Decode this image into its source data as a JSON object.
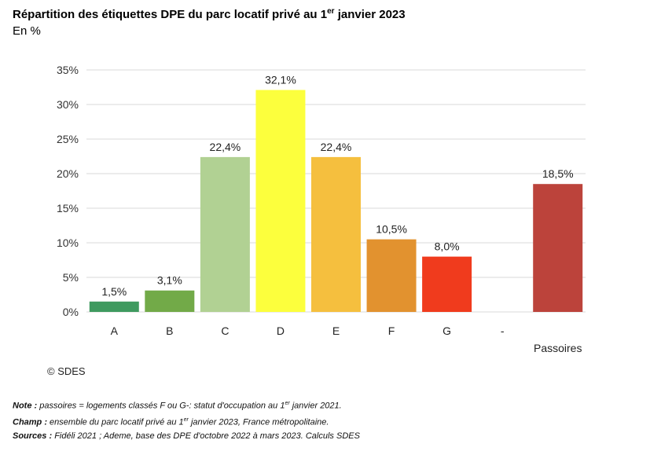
{
  "header": {
    "title_pre": "Répartition des étiquettes DPE du parc locatif privé au 1",
    "title_sup": "er",
    "title_post": " janvier 2023",
    "subtitle": "En %"
  },
  "chart_data": {
    "type": "bar",
    "categories": [
      "A",
      "B",
      "C",
      "D",
      "E",
      "F",
      "G",
      "-",
      "Passoires"
    ],
    "values": [
      1.5,
      3.1,
      22.4,
      32.1,
      22.4,
      10.5,
      8.0,
      null,
      18.5
    ],
    "data_labels": [
      "1,5%",
      "3,1%",
      "22,4%",
      "32,1%",
      "22,4%",
      "10,5%",
      "8,0%",
      "",
      "18,5%"
    ],
    "colors": [
      "#3f9a5f",
      "#72aa48",
      "#b1d193",
      "#fcff3d",
      "#f5bf3e",
      "#e2922f",
      "#f03b1d",
      "",
      "#bc433b"
    ],
    "ylim": [
      0,
      35
    ],
    "yticks": [
      0,
      5,
      10,
      15,
      20,
      25,
      30,
      35
    ],
    "ytick_labels": [
      "0%",
      "5%",
      "10%",
      "15%",
      "20%",
      "25%",
      "30%",
      "35%"
    ],
    "grid": true,
    "gridline_color": "#d9d9d9",
    "xlabel": "",
    "ylabel": ""
  },
  "footer": {
    "copyright": "© SDES",
    "note_label": "Note :",
    "note_pre": " passoires = logements classés F ou G-: statut d'occupation au 1",
    "note_sup": "er",
    "note_post": " janvier 2021.",
    "champ_label": "Champ :",
    "champ_pre": " ensemble du parc locatif privé au 1",
    "champ_sup": "er",
    "champ_post": " janvier 2023, France métropolitaine.",
    "sources_label": "Sources :",
    "sources_text": " Fidéli 2021 ; Ademe, base des DPE d'octobre 2022 à mars 2023. Calculs SDES"
  }
}
